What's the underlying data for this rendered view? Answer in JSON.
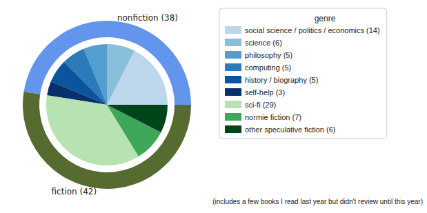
{
  "chart_data": {
    "type": "pie",
    "legend_title": "genre",
    "legend": "right",
    "annotation": "(includes a few books I read last year but didn't review until this year)",
    "outer": {
      "categories": [
        "nonfiction (38)",
        "fiction (42)"
      ],
      "values": [
        38,
        42
      ],
      "colors": [
        "#6495ed",
        "#556b2f"
      ],
      "data_labels": true
    },
    "inner": {
      "categories": [
        "social science / politics / economics (14)",
        "science (6)",
        "philosophy (5)",
        "computing (5)",
        "history / biography (5)",
        "self-help (3)",
        "sci-fi (29)",
        "normie fiction (7)",
        "other speculative fiction (6)"
      ],
      "values": [
        14,
        6,
        5,
        5,
        5,
        3,
        29,
        7,
        6
      ],
      "colors": [
        "#bcd6ec",
        "#89bedc",
        "#539ecd",
        "#2b7bba",
        "#0b559f",
        "#08306b",
        "#b7e2b1",
        "#3fa75a",
        "#00441b"
      ],
      "data_labels": false
    }
  }
}
